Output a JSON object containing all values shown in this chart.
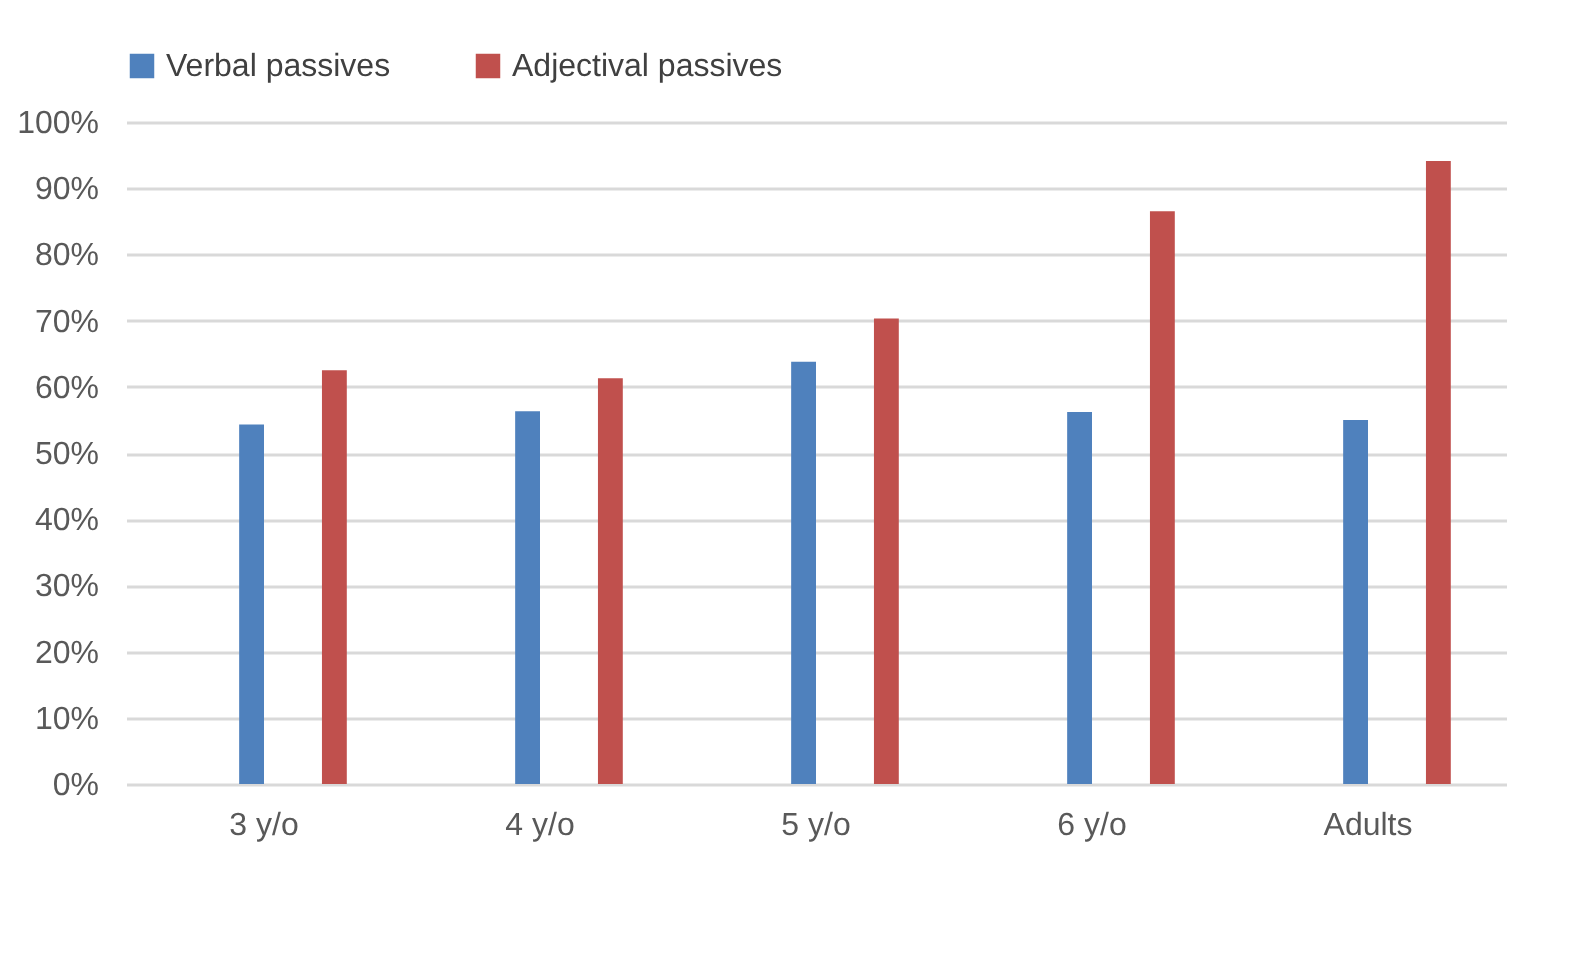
{
  "chart_data": {
    "type": "bar",
    "categories": [
      "3 y/o",
      "4 y/o",
      "5 y/o",
      "6 y/o",
      "Adults"
    ],
    "series": [
      {
        "name": "Verbal passives",
        "color": "#4f81bd",
        "values": [
          54.3,
          56.3,
          63.8,
          56.2,
          55.0
        ]
      },
      {
        "name": "Adjectival passives",
        "color": "#c0504d",
        "values": [
          62.5,
          61.3,
          70.3,
          86.5,
          94.1
        ]
      }
    ],
    "ylim": [
      0,
      100
    ],
    "yticks": [
      {
        "value": 0,
        "label": "0%"
      },
      {
        "value": 10,
        "label": "10%"
      },
      {
        "value": 20,
        "label": "20%"
      },
      {
        "value": 30,
        "label": "30%"
      },
      {
        "value": 40,
        "label": "40%"
      },
      {
        "value": 50,
        "label": "50%"
      },
      {
        "value": 60,
        "label": "60%"
      },
      {
        "value": 70,
        "label": "70%"
      },
      {
        "value": 80,
        "label": "80%"
      },
      {
        "value": 90,
        "label": "90%"
      },
      {
        "value": 100,
        "label": "100%"
      }
    ],
    "grid": "y",
    "legend": "top"
  }
}
